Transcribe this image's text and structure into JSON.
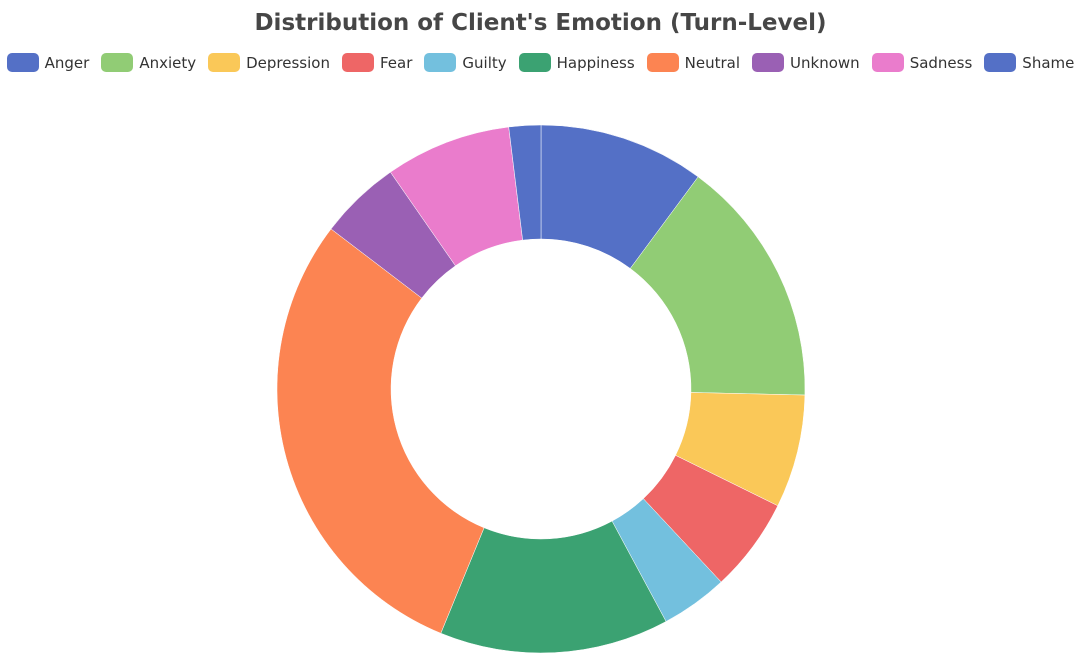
{
  "chart_data": {
    "type": "pie",
    "title": "Distribution of Client's Emotion (Turn-Level)",
    "donut": true,
    "legend_position": "top",
    "categories": [
      "Anger",
      "Anxiety",
      "Depression",
      "Fear",
      "Guilty",
      "Happiness",
      "Neutral",
      "Unknown",
      "Sadness",
      "Shame"
    ],
    "values": [
      10.4,
      15.6,
      7.1,
      5.9,
      4.2,
      14.4,
      29.9,
      5.1,
      7.9,
      2.0
    ],
    "colors": [
      "#5470c6",
      "#91cc75",
      "#fac858",
      "#ee6666",
      "#73c0de",
      "#3ba272",
      "#fc8452",
      "#9a60b4",
      "#ea7ccc",
      "#5470c6"
    ]
  }
}
